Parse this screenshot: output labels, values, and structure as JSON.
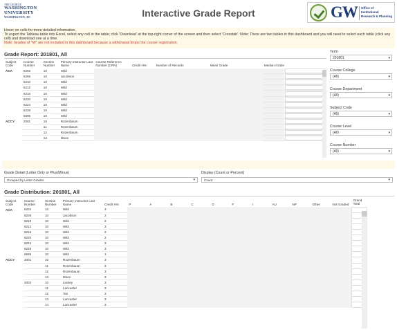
{
  "header": {
    "logo_line1": "THE GEORGE",
    "logo_line2": "WASHINGTON",
    "logo_line3": "UNIVERSITY",
    "logo_line4": "WASHINGTON, DC",
    "title": "Interactive Grade Report",
    "gw_mark": "GW",
    "gw_office_line1": "Office of",
    "gw_office_line2": "Institutional",
    "gw_office_line3": "Research & Planning"
  },
  "info": {
    "line1": "Hover on cells for more detailed information.",
    "line2": "To export the Tableau table into Excel, select any cell in the table; click 'Download' at the top-right corner of the screen and then select 'Crosstab'. Note: There are two tables in this dashboard and you will need to select each table (click any cell) and download one at a time.",
    "note": "Note: Grades of \"W\" are not included in this dashboard because a withdrawal drops the course registration."
  },
  "report": {
    "title": "Grade Report: 201801, All",
    "columns": [
      "Subject Code",
      "Course Number",
      "Section Number",
      "Primary Instructor Last Name",
      "Course Reference Number (CRN)",
      "Credit Hrs",
      "Number of Records",
      "Mean Grade",
      "Median Grade"
    ],
    "rows": [
      {
        "subject": "ACA",
        "course": "6202",
        "section": "10",
        "instructor": "Wild"
      },
      {
        "subject": "",
        "course": "6206",
        "section": "10",
        "instructor": "Jacobson"
      },
      {
        "subject": "",
        "course": "6210",
        "section": "10",
        "instructor": "Wild"
      },
      {
        "subject": "",
        "course": "6212",
        "section": "10",
        "instructor": "Wild"
      },
      {
        "subject": "",
        "course": "6216",
        "section": "10",
        "instructor": "Wild"
      },
      {
        "subject": "",
        "course": "6220",
        "section": "10",
        "instructor": "Wild"
      },
      {
        "subject": "",
        "course": "6224",
        "section": "10",
        "instructor": "Wild"
      },
      {
        "subject": "",
        "course": "6228",
        "section": "10",
        "instructor": "Wild"
      },
      {
        "subject": "",
        "course": "6595",
        "section": "10",
        "instructor": "Wild"
      },
      {
        "subject": "ACCY",
        "course": "2001",
        "section": "10",
        "instructor": "Rozenbaum"
      },
      {
        "subject": "",
        "course": "",
        "section": "11",
        "instructor": "Rozenbaum"
      },
      {
        "subject": "",
        "course": "",
        "section": "12",
        "instructor": "Rozenbaum"
      },
      {
        "subject": "",
        "course": "",
        "section": "13",
        "instructor": "Moon"
      }
    ]
  },
  "filters": [
    {
      "label": "Term",
      "value": "201801"
    },
    {
      "label": "Course College",
      "value": "(All)"
    },
    {
      "label": "Course Department",
      "value": "(All)"
    },
    {
      "label": "Subject Code",
      "value": "(All)"
    },
    {
      "label": "Course Level",
      "value": "(All)"
    },
    {
      "label": "Course Number",
      "value": "(All)"
    }
  ],
  "controls": {
    "grade_detail_label": "Grade Detail (Letter Only or Plus/Minus)",
    "grade_detail_value": "Grouped by Letter Grades",
    "display_label": "Display (Count or Percent)",
    "display_value": "Count"
  },
  "distribution": {
    "title": "Grade Distribution: 201801, All",
    "columns": [
      "Subject Code",
      "Course Number",
      "Section Number",
      "Primary Instructor Last Name",
      "Credit Hrs",
      "P",
      "A",
      "B",
      "C",
      "D",
      "F",
      "I",
      "AU",
      "NP",
      "Other",
      "Not Graded",
      "Grand Total"
    ],
    "rows": [
      {
        "subject": "ACA",
        "course": "6202",
        "section": "10",
        "instructor": "Wild",
        "credit": "3"
      },
      {
        "subject": "",
        "course": "6206",
        "section": "10",
        "instructor": "Jacobson",
        "credit": "2"
      },
      {
        "subject": "",
        "course": "6210",
        "section": "10",
        "instructor": "Wild",
        "credit": "2"
      },
      {
        "subject": "",
        "course": "6212",
        "section": "10",
        "instructor": "Wild",
        "credit": "3"
      },
      {
        "subject": "",
        "course": "6216",
        "section": "10",
        "instructor": "Wild",
        "credit": "2"
      },
      {
        "subject": "",
        "course": "6220",
        "section": "10",
        "instructor": "Wild",
        "credit": "2"
      },
      {
        "subject": "",
        "course": "6224",
        "section": "10",
        "instructor": "Wild",
        "credit": "3"
      },
      {
        "subject": "",
        "course": "6228",
        "section": "10",
        "instructor": "Wild",
        "credit": "3"
      },
      {
        "subject": "",
        "course": "6595",
        "section": "10",
        "instructor": "Wild",
        "credit": "1"
      },
      {
        "subject": "ACCY",
        "course": "2001",
        "section": "10",
        "instructor": "Rozenbaum",
        "credit": "3"
      },
      {
        "subject": "",
        "course": "",
        "section": "11",
        "instructor": "Rozenbaum",
        "credit": "3"
      },
      {
        "subject": "",
        "course": "",
        "section": "12",
        "instructor": "Rozenbaum",
        "credit": "3"
      },
      {
        "subject": "",
        "course": "",
        "section": "13",
        "instructor": "Moon",
        "credit": "3"
      },
      {
        "subject": "",
        "course": "2002",
        "section": "10",
        "instructor": "Linsley",
        "credit": "3"
      },
      {
        "subject": "",
        "course": "",
        "section": "11",
        "instructor": "Lancaster",
        "credit": "3"
      },
      {
        "subject": "",
        "course": "",
        "section": "12",
        "instructor": "Tan",
        "credit": "3"
      },
      {
        "subject": "",
        "course": "",
        "section": "13",
        "instructor": "Lancaster",
        "credit": "3"
      },
      {
        "subject": "",
        "course": "",
        "section": "14",
        "instructor": "Lancaster",
        "credit": "3"
      }
    ]
  },
  "icons": {
    "dropdown": "chevron-down-icon",
    "seal": "check-seal-icon"
  },
  "colors": {
    "brand_navy": "#1f3b6f",
    "note_red": "#c0392b",
    "band_yellow": "#fdf9e6"
  }
}
